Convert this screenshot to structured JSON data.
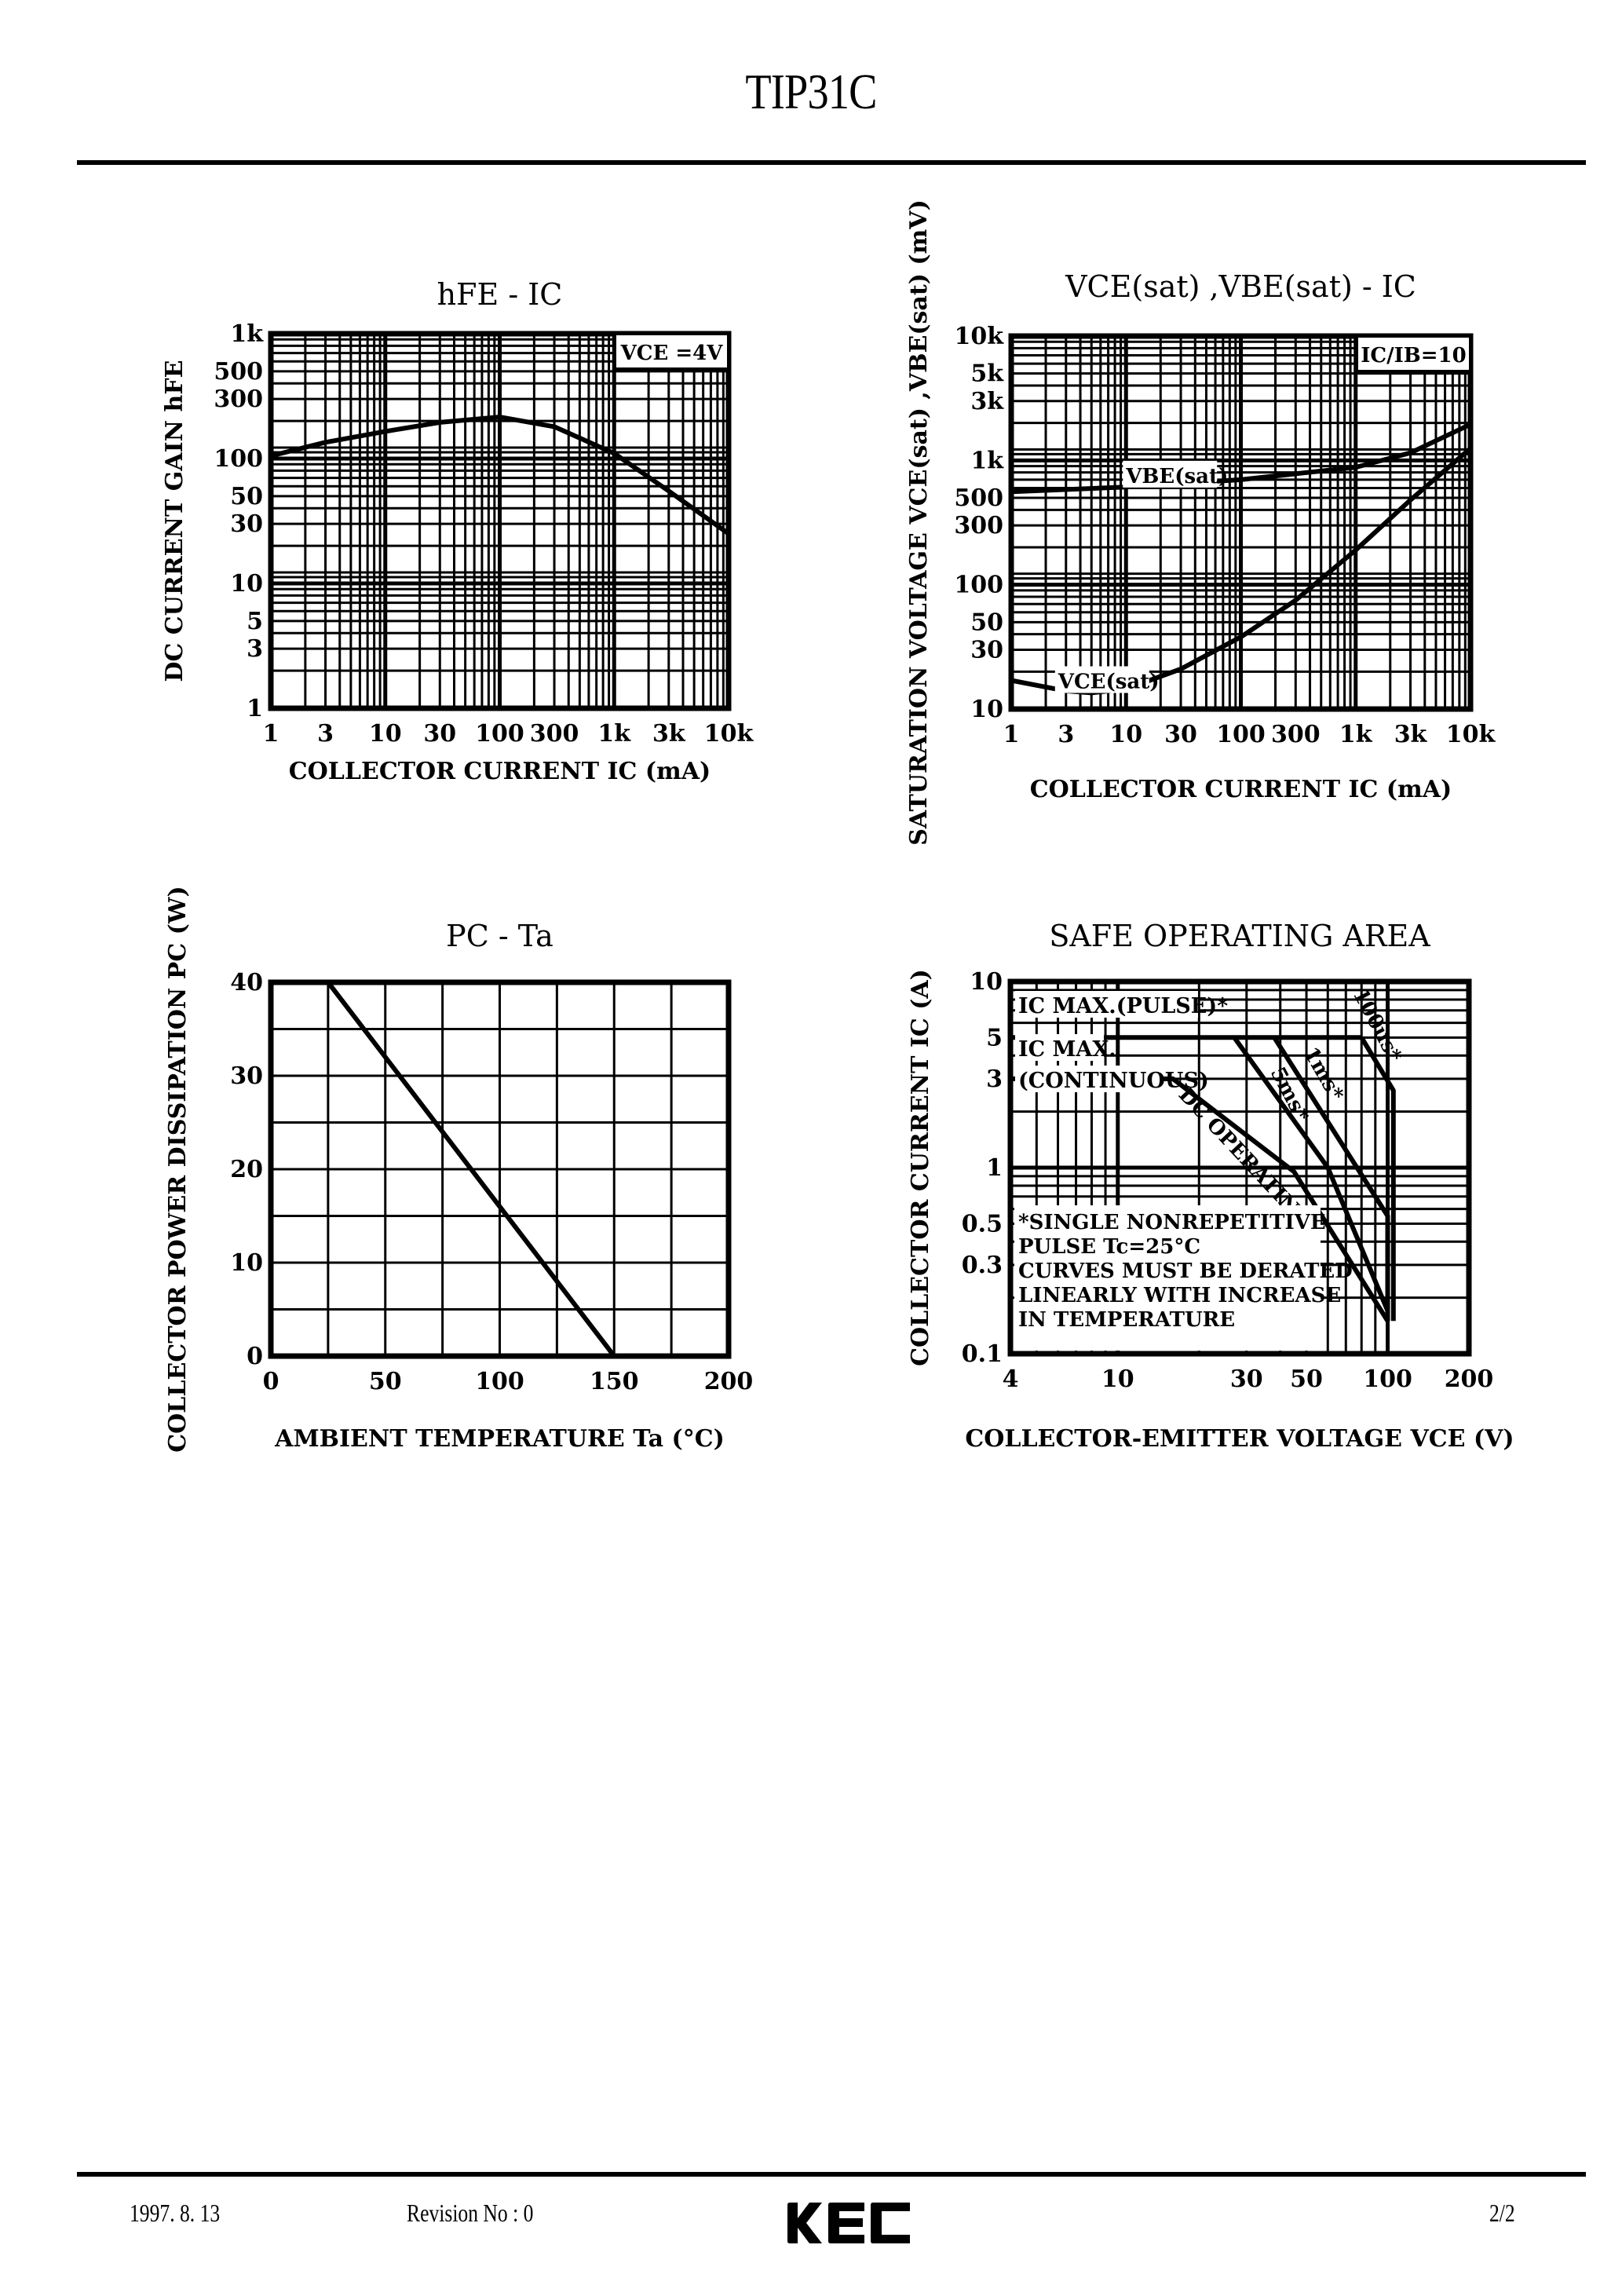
{
  "header": {
    "part_number": "TIP31C"
  },
  "footer": {
    "date": "1997. 8. 13",
    "revision": "Revision No : 0",
    "logo": "KEC",
    "page": "2/2"
  },
  "chart_data": [
    {
      "id": "hfe-ic",
      "type": "line",
      "title": "hFE - IC",
      "xlabel": "COLLECTOR CURRENT IC (mA)",
      "ylabel": "DC CURRENT GAIN hFE",
      "xscale": "log",
      "yscale": "log",
      "xlim": [
        1,
        10000
      ],
      "ylim": [
        1,
        1000
      ],
      "x_ticks": [
        "1",
        "3",
        "10",
        "30",
        "100",
        "300",
        "1k",
        "3k",
        "10k"
      ],
      "y_ticks": [
        "1",
        "3",
        "5",
        "10",
        "30",
        "50",
        "100",
        "300",
        "500",
        "1k"
      ],
      "annotation": "VCE =4V",
      "grid": true,
      "series": [
        {
          "name": "hFE",
          "x": [
            1,
            3,
            10,
            30,
            100,
            300,
            1000,
            3000,
            10000
          ],
          "y": [
            105,
            135,
            165,
            195,
            215,
            180,
            110,
            55,
            25
          ]
        }
      ]
    },
    {
      "id": "vsat-ic",
      "type": "line",
      "title": "VCE(sat) ,VBE(sat) - IC",
      "xlabel": "COLLECTOR CURRENT IC (mA)",
      "ylabel": "SATURATION VOLTAGE VCE(sat) ,VBE(sat) (mV)",
      "xscale": "log",
      "yscale": "log",
      "xlim": [
        1,
        10000
      ],
      "ylim": [
        10,
        10000
      ],
      "x_ticks": [
        "1",
        "3",
        "10",
        "30",
        "100",
        "300",
        "1k",
        "3k",
        "10k"
      ],
      "y_ticks": [
        "10",
        "30",
        "50",
        "100",
        "300",
        "500",
        "1k",
        "3k",
        "5k",
        "10k"
      ],
      "annotation": "IC/IB=10",
      "grid": true,
      "series": [
        {
          "name": "VBE(sat)",
          "x": [
            1,
            10,
            100,
            1000,
            3000,
            10000
          ],
          "y": [
            560,
            610,
            700,
            880,
            1150,
            1950
          ]
        },
        {
          "name": "VCE(sat)",
          "x": [
            1,
            3,
            5,
            10,
            30,
            100,
            300,
            1000,
            3000,
            10000
          ],
          "y": [
            17,
            14,
            13.5,
            14.5,
            21,
            38,
            75,
            190,
            480,
            1250
          ]
        }
      ]
    },
    {
      "id": "pc-ta",
      "type": "line",
      "title": "PC - Ta",
      "xlabel": "AMBIENT TEMPERATURE Ta (°C)",
      "ylabel": "COLLECTOR POWER DISSIPATION PC (W)",
      "xlim": [
        0,
        200
      ],
      "ylim": [
        0,
        40
      ],
      "x_ticks": [
        "0",
        "50",
        "100",
        "150",
        "200"
      ],
      "y_ticks": [
        "0",
        "10",
        "20",
        "30",
        "40"
      ],
      "grid": true,
      "series": [
        {
          "name": "PC",
          "x": [
            0,
            25,
            150
          ],
          "y": [
            40,
            40,
            0
          ]
        }
      ]
    },
    {
      "id": "soa",
      "type": "line",
      "title": "SAFE OPERATING AREA",
      "xlabel": "COLLECTOR-EMITTER VOLTAGE VCE (V)",
      "ylabel": "COLLECTOR CURRENT IC (A)",
      "xscale": "log",
      "yscale": "log",
      "xlim": [
        4,
        200
      ],
      "ylim": [
        0.1,
        10
      ],
      "x_ticks": [
        "4",
        "10",
        "30",
        "50",
        "100",
        "200"
      ],
      "y_ticks": [
        "0.1",
        "0.3",
        "0.5",
        "1",
        "3",
        "5",
        "10"
      ],
      "grid": true,
      "labels": {
        "ic_max_pulse": "IC MAX.(PULSE)*",
        "ic_max_cont_1": "IC MAX.",
        "ic_max_cont_2": "(CONTINUOUS)",
        "dc": "DC OPERATING",
        "ms5": "5ms*",
        "ms1": "1ms*",
        "us100": "100us*"
      },
      "note": [
        "*SINGLE NONREPETITIVE",
        " PULSE Tc=25°C",
        "CURVES MUST BE DERATED",
        "LINEARLY WITH INCREASE",
        "IN TEMPERATURE"
      ],
      "series": [
        {
          "name": "DC OPERATING",
          "x": [
            4,
            16,
            45,
            100
          ],
          "y": [
            3,
            3,
            0.95,
            0.15
          ]
        },
        {
          "name": "5ms*",
          "x": [
            27,
            60,
            100
          ],
          "y": [
            5,
            1,
            0.17
          ]
        },
        {
          "name": "1ms*",
          "x": [
            38,
            100,
            100
          ],
          "y": [
            5,
            0.55,
            0.15
          ]
        },
        {
          "name": "100us*",
          "x": [
            80,
            105,
            105
          ],
          "y": [
            5,
            2.6,
            0.15
          ]
        },
        {
          "name": "IC MAX.(PULSE)*",
          "x": [
            4,
            80
          ],
          "y": [
            5,
            5
          ]
        }
      ]
    }
  ]
}
